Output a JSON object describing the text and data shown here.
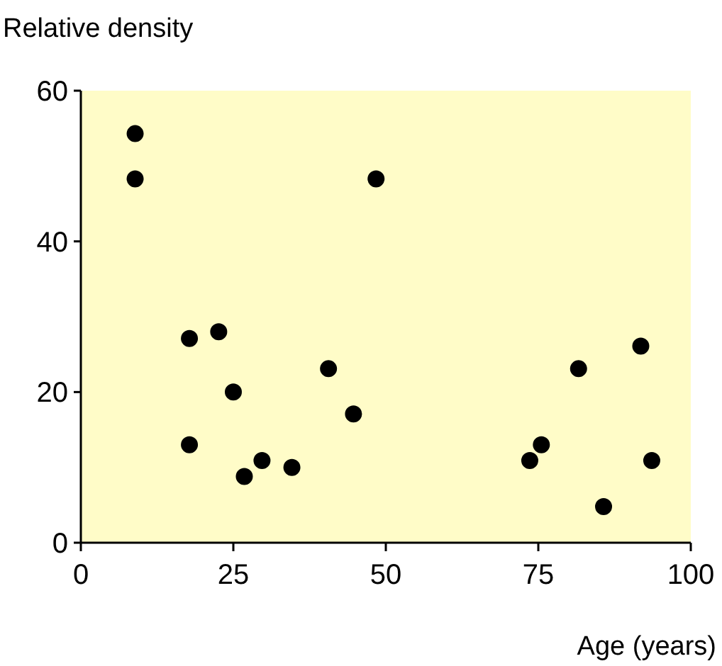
{
  "chart_data": {
    "type": "scatter",
    "xlabel": "Age (years)",
    "ylabel": "Relative density",
    "xlim": [
      0,
      100
    ],
    "ylim": [
      0,
      60
    ],
    "xticks": [
      0,
      25,
      50,
      75,
      100
    ],
    "yticks": [
      0,
      20,
      40,
      60
    ],
    "marker": "circle",
    "grid": false,
    "series": [
      {
        "color": "#000000",
        "x": [
          8.9,
          8.9,
          17.8,
          22.6,
          25,
          40.6,
          44.7,
          17.8,
          29.7,
          26.8,
          34.6,
          48.4,
          81.6,
          91.8,
          75.5,
          73.6,
          93.6,
          85.7
        ],
        "values": [
          54.3,
          48.3,
          27.1,
          28,
          20,
          23.1,
          17.1,
          13,
          10.9,
          8.8,
          10,
          48.3,
          23.1,
          26.1,
          13,
          10.9,
          10.9,
          4.8
        ]
      }
    ]
  }
}
